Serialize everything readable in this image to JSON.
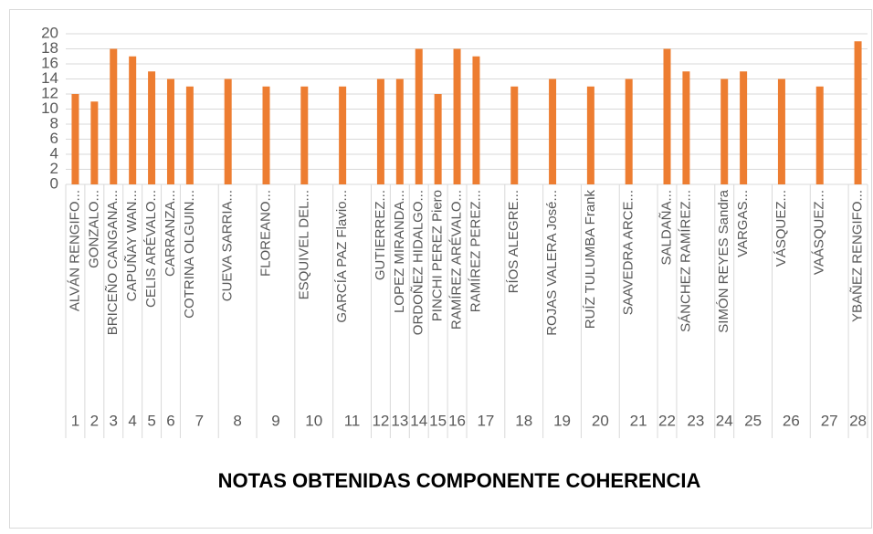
{
  "chart_data": {
    "type": "bar",
    "title": "NOTAS OBTENIDAS COMPONENTE COHERENCIA",
    "groups": [
      "1",
      "2",
      "3",
      "4",
      "5",
      "6",
      "7",
      "8",
      "9",
      "10",
      "11",
      "12",
      "13",
      "14",
      "15",
      "16",
      "17",
      "18",
      "19",
      "20",
      "21",
      "22",
      "23",
      "24",
      "25",
      "26",
      "27",
      "28"
    ],
    "categories": [
      "ALVÁN RENGIFO...",
      "GONZALO...",
      "BRICEÑO CANGANA...",
      "CAPUÑAY WAN...",
      "CELIS ARÉVALO...",
      "CARRANZA...",
      "COTRINA OLGUIN...",
      "CUEVA SARRIA...",
      "FLOREANO...",
      "ESQUIVEL DEL...",
      "GARCÍA PAZ Flavio...",
      "GUTIERREZ...",
      "LOPEZ MIRANDA...",
      "ORDOÑEZ HIDALGO...",
      "PINCHI PEREZ Piero",
      "RAMÍREZ ARÉVALO...",
      "RAMÍREZ PEREZ...",
      "RÍOS ALEGRE...",
      "ROJAS VALERA José...",
      "RUÍZ TULUMBA Frank",
      "SAAVEDRA ARCE...",
      "SALDAÑA...",
      "SÁNCHEZ RAMÍREZ...",
      "SIMÓN REYES Sandra",
      "VARGAS...",
      "VÁSQUEZ...",
      "VAÁSQUEZ...",
      "YBAÑEZ RENGIFO..."
    ],
    "values": [
      12,
      11,
      18,
      17,
      15,
      14,
      13,
      14,
      13,
      13,
      13,
      14,
      14,
      18,
      12,
      18,
      17,
      13,
      14,
      13,
      14,
      18,
      15,
      14,
      15,
      14,
      13,
      19
    ],
    "color": "#ed7d31",
    "ylim": [
      0,
      20
    ],
    "yticks": [
      0,
      2,
      4,
      6,
      8,
      10,
      12,
      14,
      16,
      18,
      20
    ],
    "grid": true
  }
}
